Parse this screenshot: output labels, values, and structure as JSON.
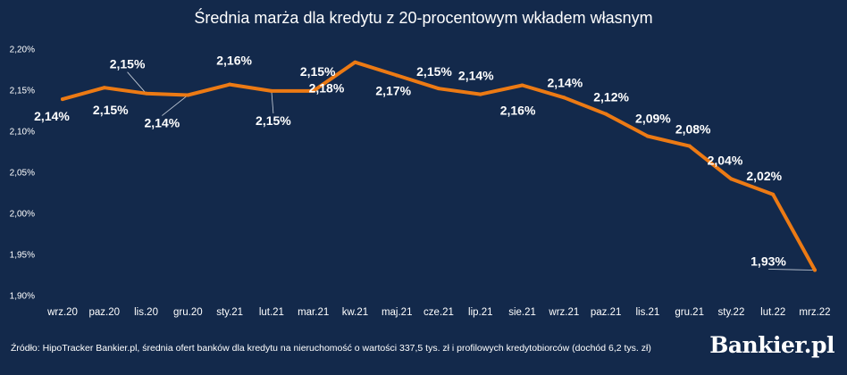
{
  "chart_data": {
    "type": "line",
    "title": "Średnia marża dla kredytu z 20-procentowym wkładem własnym",
    "xlabel": "",
    "ylabel": "",
    "ylim": [
      1.9,
      2.2
    ],
    "yticks": [
      1.9,
      1.95,
      2.0,
      2.05,
      2.1,
      2.15,
      2.2
    ],
    "ytick_labels": [
      "1,90%",
      "1,95%",
      "2,00%",
      "2,05%",
      "2,10%",
      "2,15%",
      "2,20%"
    ],
    "grid": false,
    "categories": [
      "wrz.20",
      "paz.20",
      "lis.20",
      "gru.20",
      "sty.21",
      "lut.21",
      "mar.21",
      "kw.21",
      "maj.21",
      "cze.21",
      "lip.21",
      "sie.21",
      "wrz.21",
      "paz.21",
      "lis.21",
      "gru.21",
      "sty.22",
      "lut.22",
      "mrz.22"
    ],
    "series": [
      {
        "name": "Średnia marża",
        "color": "#ec7a14",
        "values": [
          2.139,
          2.153,
          2.146,
          2.144,
          2.157,
          2.149,
          2.149,
          2.184,
          2.168,
          2.152,
          2.145,
          2.156,
          2.141,
          2.121,
          2.094,
          2.082,
          2.042,
          2.023,
          1.931
        ],
        "labels": [
          "2,14%",
          "2,15%",
          "2,15%",
          "2,14%",
          "2,16%",
          "2,15%",
          "2,15%",
          "2,18%",
          "2,17%",
          "2,15%",
          "2,14%",
          "2,16%",
          "2,14%",
          "2,12%",
          "2,09%",
          "2,08%",
          "2,04%",
          "2,02%",
          "1,93%"
        ]
      }
    ]
  },
  "footer": {
    "source": "Źródło: HipoTracker Bankier.pl, średnia ofert banków dla kredytu na nieruchomość o wartości 337,5 tys. zł i profilowych kredytobiorców (dochód 6,2 tys. zł)",
    "brand": "Bankier.pl"
  },
  "colors": {
    "background": "#13294b",
    "line": "#ec7a14",
    "text": "#ffffff"
  }
}
